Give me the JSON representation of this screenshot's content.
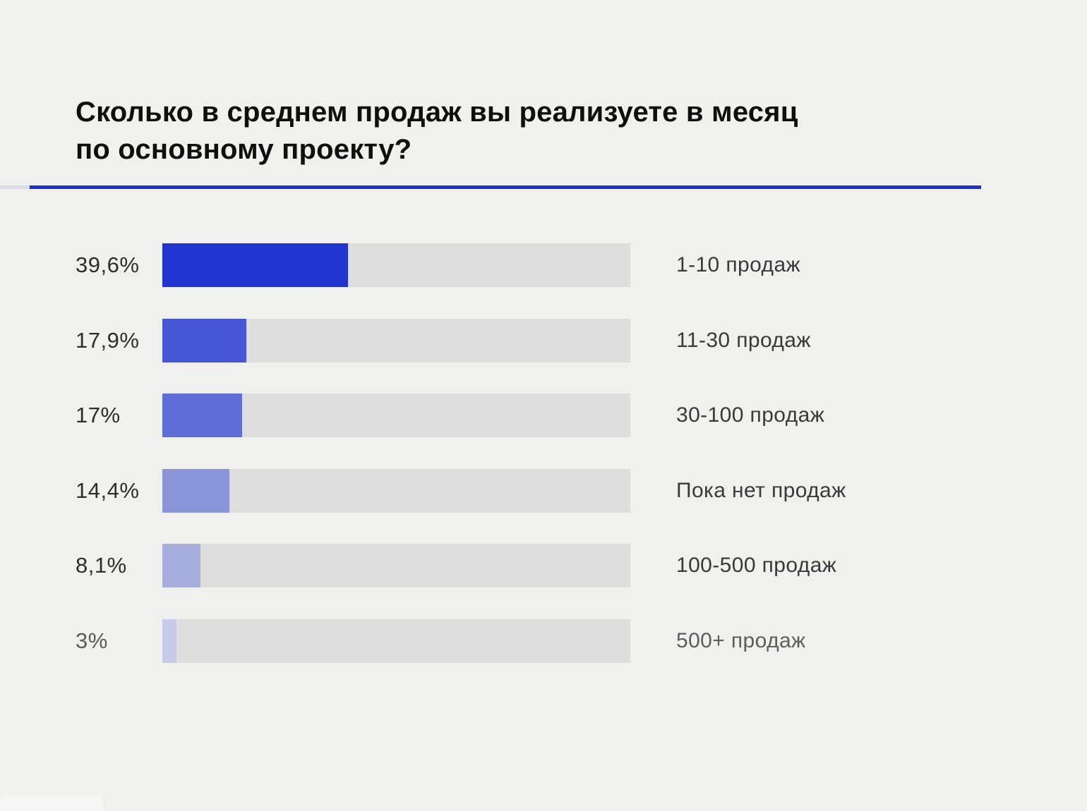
{
  "title_lines": {
    "line1": "Сколько в среднем продаж вы реализуете в месяц",
    "line2": "по основному проекту?"
  },
  "colors": {
    "background": "#f0f0ef",
    "divider_accent": "#1c30c8",
    "divider_stub": "#dcdde8",
    "track": "#dedede",
    "label_dark": "#2d2d2e",
    "label_muted": "#5d5d5f"
  },
  "chart_data": {
    "type": "bar",
    "orientation": "horizontal",
    "title": "Сколько в среднем продаж вы реализуете в месяц по основному проекту?",
    "categories": [
      "1-10 продаж",
      "11-30 продаж",
      "30-100 продаж",
      "Пока нет продаж",
      "100-500 продаж",
      "500+ продаж"
    ],
    "values": [
      39.6,
      17.9,
      17,
      14.4,
      8.1,
      3
    ],
    "value_labels": [
      "39,6%",
      "17,9%",
      "17%",
      "14,4%",
      "8,1%",
      "3%"
    ],
    "bar_colors": [
      "#2134cf",
      "#4557d4",
      "#5f6ed6",
      "#8b95da",
      "#a7aedd",
      "#c6cbe7"
    ],
    "muted_rows": [
      5
    ],
    "xlim": [
      0,
      100
    ],
    "grid": false,
    "legend": "none"
  }
}
